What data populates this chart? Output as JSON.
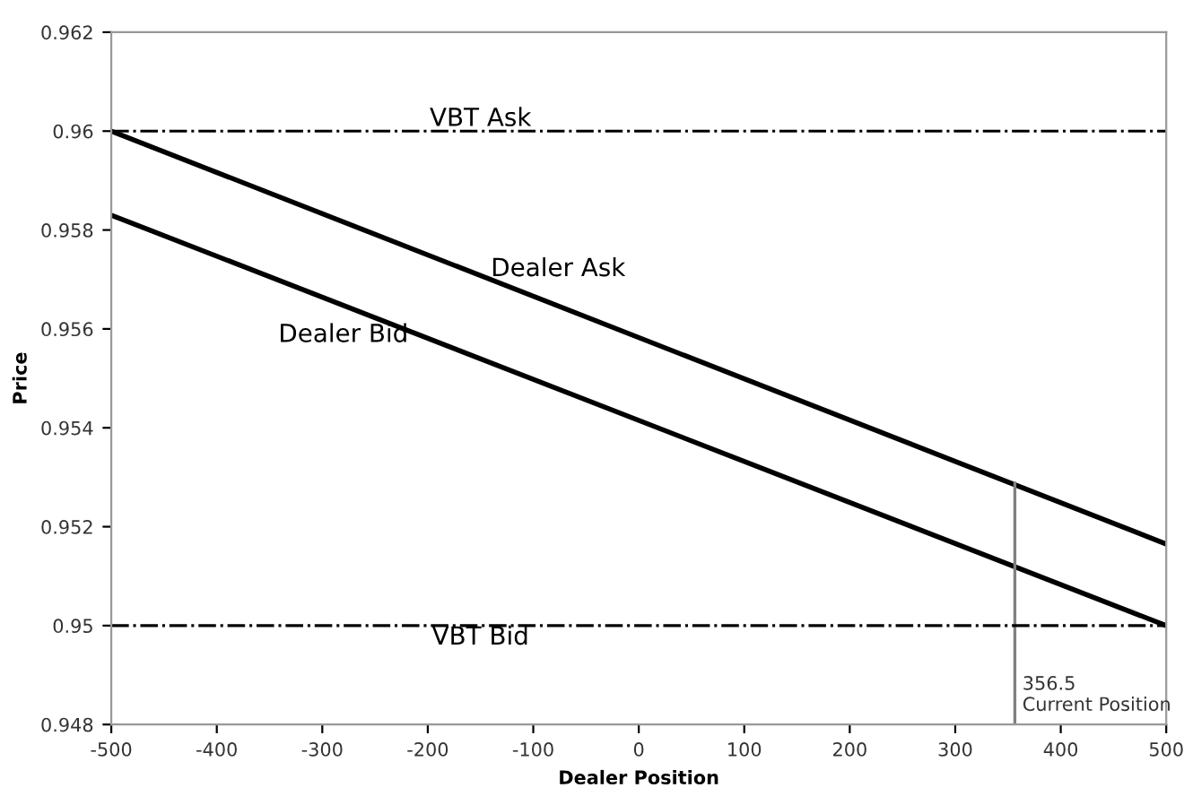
{
  "chart_data": {
    "type": "line",
    "xlabel": "Dealer Position",
    "ylabel": "Price",
    "xlim": [
      -500,
      500
    ],
    "xticks": [
      -500,
      -400,
      -300,
      -200,
      -100,
      0,
      100,
      200,
      300,
      400,
      500
    ],
    "ylim": [
      0.948,
      0.962
    ],
    "yticks": [
      0.948,
      0.95,
      0.952,
      0.954,
      0.956,
      0.958,
      0.96,
      0.962
    ],
    "grid": false,
    "legend": false,
    "marker": "none",
    "line_style": "solid",
    "series": [
      {
        "color": "#000000",
        "x": [
          -500,
          500
        ],
        "values": [
          0.96,
          0.95165
        ]
      },
      {
        "color": "#000000",
        "x": [
          -500,
          500
        ],
        "values": [
          0.9583,
          0.95
        ]
      },
      {
        "color": "#808080",
        "x": [
          356.5,
          356.5
        ],
        "values": [
          0.948,
          0.95288
        ]
      }
    ],
    "ref_lines": [
      {
        "axis": "y",
        "value": 0.96,
        "label": "VBT Ask",
        "color": "#000000",
        "line_style": "dashdot"
      },
      {
        "axis": "y",
        "value": 0.95,
        "label": "VBT Bid",
        "color": "#000000",
        "line_style": "dashdot"
      }
    ],
    "annotations": [
      {
        "text": "Dealer Ask",
        "x": -100,
        "y": 0.95666
      },
      {
        "text": "Dealer Bid",
        "x": -280,
        "y": 0.95647
      },
      {
        "text": "356.5\nCurrent Position",
        "x": 356.5,
        "y": 0.9482
      }
    ]
  }
}
